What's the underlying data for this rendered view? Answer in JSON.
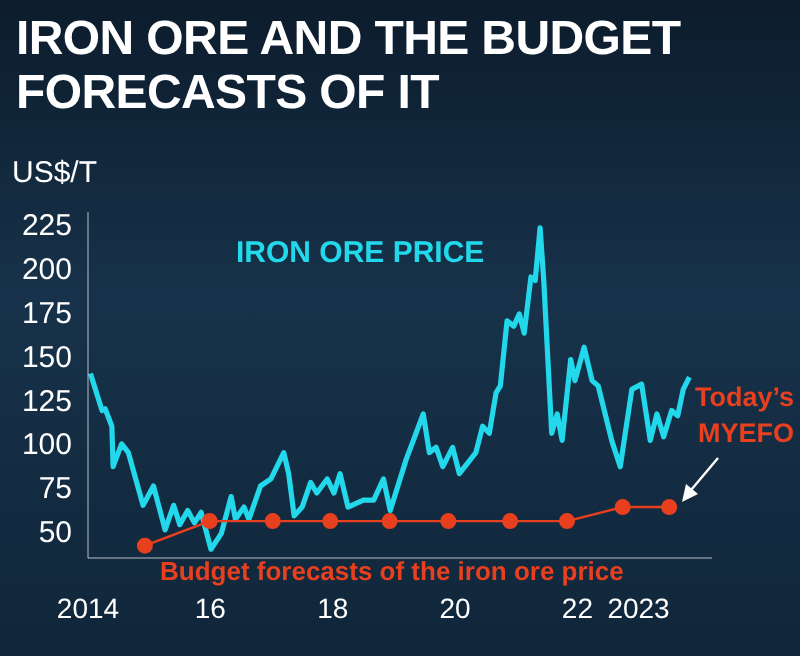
{
  "chart_data": {
    "type": "line",
    "title": "IRON ORE AND THE BUDGET FORECASTS OF IT",
    "ylabel": "US$/T",
    "xlim": [
      2014,
      2024.2
    ],
    "xticks": [
      2014,
      {
        "value": 2016,
        "label": "16"
      },
      {
        "value": 2018,
        "label": "18"
      },
      {
        "value": 2020,
        "label": "20"
      },
      {
        "value": 2022,
        "label": "22"
      },
      2023
    ],
    "ylim": [
      35,
      232
    ],
    "yticks": [
      50,
      75,
      100,
      125,
      150,
      175,
      200,
      225
    ],
    "series": [
      {
        "name": "IRON ORE PRICE",
        "color": "#22d8ea",
        "marker": "none",
        "x": [
          2014.04,
          2014.23,
          2014.28,
          2014.39,
          2014.41,
          2014.55,
          2014.66,
          2014.9,
          2015.07,
          2015.26,
          2015.4,
          2015.5,
          2015.63,
          2015.74,
          2015.85,
          2016.01,
          2016.18,
          2016.34,
          2016.41,
          2016.55,
          2016.63,
          2016.72,
          2016.82,
          2016.99,
          2017.06,
          2017.2,
          2017.28,
          2017.37,
          2017.5,
          2017.64,
          2017.74,
          2017.91,
          2018.02,
          2018.12,
          2018.25,
          2018.5,
          2018.67,
          2018.83,
          2018.94,
          2019.2,
          2019.48,
          2019.58,
          2019.69,
          2019.8,
          2019.96,
          2020.07,
          2020.34,
          2020.45,
          2020.56,
          2020.67,
          2020.74,
          2020.85,
          2020.96,
          2021.05,
          2021.13,
          2021.24,
          2021.31,
          2021.39,
          2021.45,
          2021.58,
          2021.67,
          2021.75,
          2021.89,
          2021.96,
          2022.11,
          2022.24,
          2022.34,
          2022.56,
          2022.7,
          2022.89,
          2023.05,
          2023.19,
          2023.3,
          2023.41,
          2023.54,
          2023.64,
          2023.73,
          2023.83
        ],
        "values": [
          140,
          119,
          120,
          110,
          87,
          100,
          95,
          65,
          76,
          51,
          65,
          54,
          62,
          55,
          61,
          40,
          49,
          70,
          57,
          64,
          57,
          66,
          76,
          80,
          85,
          95,
          83,
          59,
          64,
          78,
          72,
          80,
          72,
          83,
          64,
          68,
          68,
          80,
          62,
          91,
          117,
          95,
          98,
          87,
          98,
          83,
          95,
          110,
          106,
          129,
          133,
          170,
          167,
          174,
          163,
          195,
          193,
          223,
          193,
          106,
          117,
          102,
          148,
          136,
          155,
          136,
          133,
          102,
          87,
          131,
          134,
          102,
          117,
          104,
          119,
          116,
          131,
          138
        ]
      },
      {
        "name": "Budget forecasts of the iron ore price",
        "color": "#e8401e",
        "marker": "circle",
        "x": [
          2014.93,
          2015.99,
          2017.02,
          2017.96,
          2018.93,
          2019.89,
          2020.9,
          2021.83,
          2022.74,
          2023.5
        ],
        "values": [
          42,
          56,
          56,
          56,
          56,
          56,
          56,
          56,
          64,
          64
        ]
      }
    ],
    "annotations": [
      {
        "text": "Today’s MYEFO",
        "x": 2023.5,
        "y": 64
      }
    ]
  }
}
